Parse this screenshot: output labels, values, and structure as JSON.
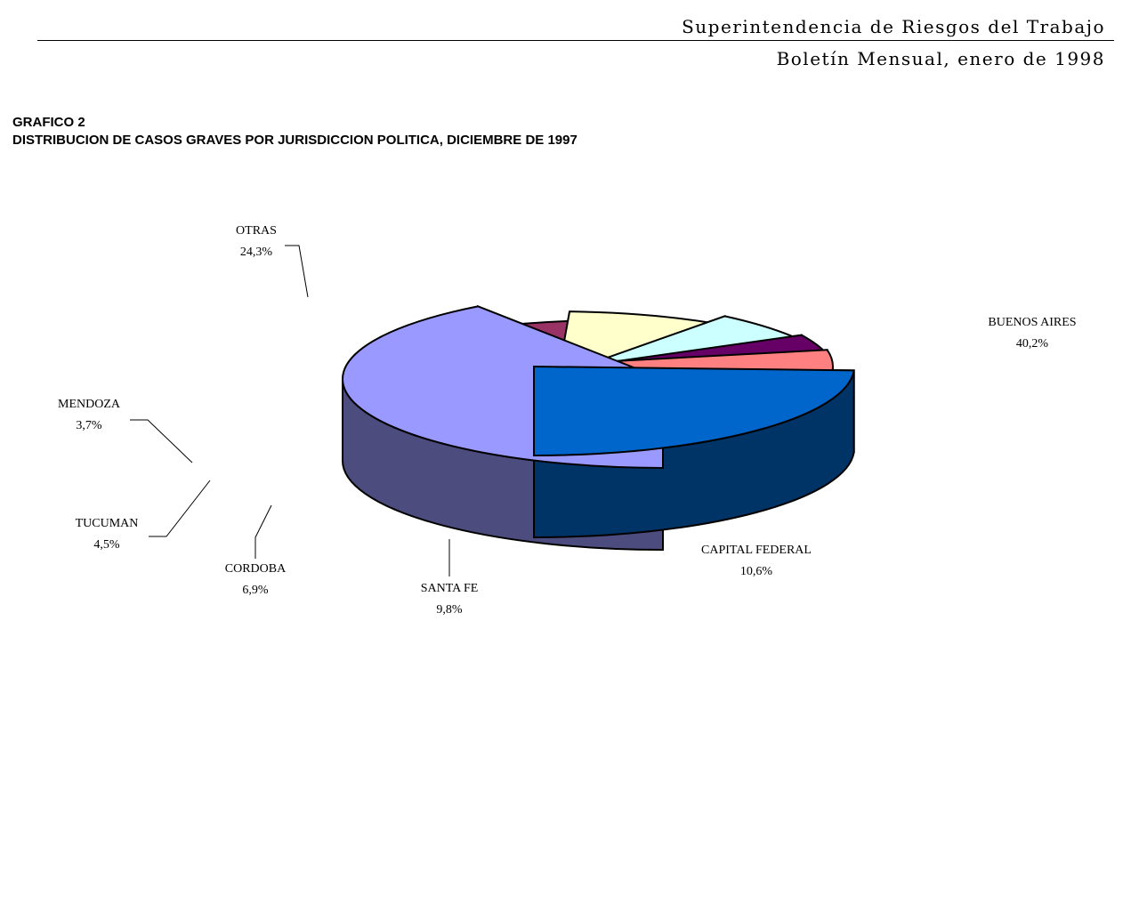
{
  "header": {
    "organization": "Superintendencia de Riesgos del Trabajo",
    "bulletin": "Boletín Mensual, enero de 1998"
  },
  "chart_heading": {
    "number": "GRAFICO 2",
    "title": "DISTRIBUCION DE CASOS GRAVES POR JURISDICCION POLITICA, DICIEMBRE DE 1997"
  },
  "chart_data": {
    "type": "pie",
    "title": "DISTRIBUCION DE CASOS GRAVES POR JURISDICCION POLITICA, DICIEMBRE DE 1997",
    "unit": "%",
    "exploded": true,
    "three_d": true,
    "slices": [
      {
        "name": "BUENOS AIRES",
        "value": 40.2,
        "label": "40,2%",
        "color": "#9999FF",
        "side_color": "#4C4C7F"
      },
      {
        "name": "CAPITAL FEDERAL",
        "value": 10.6,
        "label": "10,6%",
        "color": "#993366",
        "side_color": "#4C1933"
      },
      {
        "name": "SANTA FE",
        "value": 9.8,
        "label": "9,8%",
        "color": "#FFFFCC",
        "side_color": "#7F7F66"
      },
      {
        "name": "CORDOBA",
        "value": 6.9,
        "label": "6,9%",
        "color": "#CCFFFF",
        "side_color": "#667F7F"
      },
      {
        "name": "TUCUMAN",
        "value": 4.5,
        "label": "4,5%",
        "color": "#660066",
        "side_color": "#330033"
      },
      {
        "name": "MENDOZA",
        "value": 3.7,
        "label": "3,7%",
        "color": "#FF8080",
        "side_color": "#7F4040"
      },
      {
        "name": "OTRAS",
        "value": 24.3,
        "label": "24,3%",
        "color": "#0066CC",
        "side_color": "#003366"
      }
    ]
  }
}
